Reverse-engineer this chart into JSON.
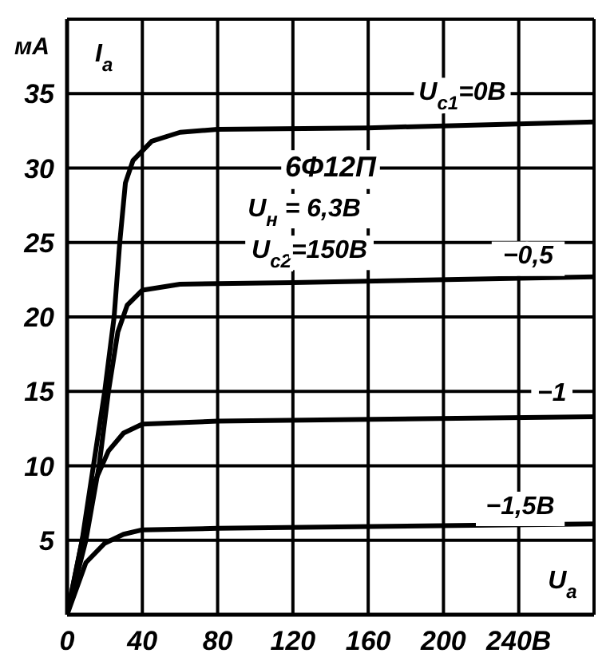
{
  "chart_data": {
    "type": "line",
    "ylabel": "мА",
    "x": [
      0,
      8,
      14,
      20,
      25,
      28,
      31,
      35,
      45,
      60,
      80,
      160,
      280
    ],
    "series": [
      {
        "color": "#000000",
        "values": [
          0,
          5,
          10,
          15,
          20,
          25,
          29,
          30.5,
          31.8,
          32.4,
          32.6,
          32.7,
          33.1
        ]
      },
      {
        "color": "#000000",
        "x": [
          0,
          10,
          17,
          22,
          27,
          32,
          40,
          60,
          120,
          280
        ],
        "values": [
          0,
          5,
          10,
          15,
          19,
          20.8,
          21.8,
          22.2,
          22.3,
          22.7
        ]
      },
      {
        "color": "#000000",
        "x": [
          0,
          8,
          15,
          22,
          30,
          40,
          80,
          280
        ],
        "values": [
          0,
          5,
          9,
          11,
          12.2,
          12.8,
          13,
          13.3
        ]
      },
      {
        "color": "#000000",
        "x": [
          0,
          10,
          20,
          30,
          40,
          80,
          280
        ],
        "values": [
          0,
          3.5,
          4.8,
          5.4,
          5.7,
          5.8,
          6.1
        ]
      }
    ],
    "xlim": [
      0,
      280
    ],
    "xticks": [
      0,
      40,
      80,
      120,
      160,
      200,
      {
        "value": 240,
        "label": "240В"
      },
      {
        "value": 280,
        "label": null
      }
    ],
    "ylim": [
      0,
      40
    ],
    "yticks": [
      5,
      10,
      15,
      20,
      25,
      30,
      35,
      {
        "value": 40,
        "label": null
      }
    ],
    "grid": true,
    "legend": false,
    "marker": "none",
    "line_style": "solid",
    "annotations": [
      "U$_{с1}$=0В",
      "−0,5",
      "−1",
      "−1,5В",
      "6Ф12П",
      "U$_{н}$ = 6,3В",
      "U$_{с2}$=150В",
      "I$_{а}$",
      "U$_{а}$"
    ]
  }
}
